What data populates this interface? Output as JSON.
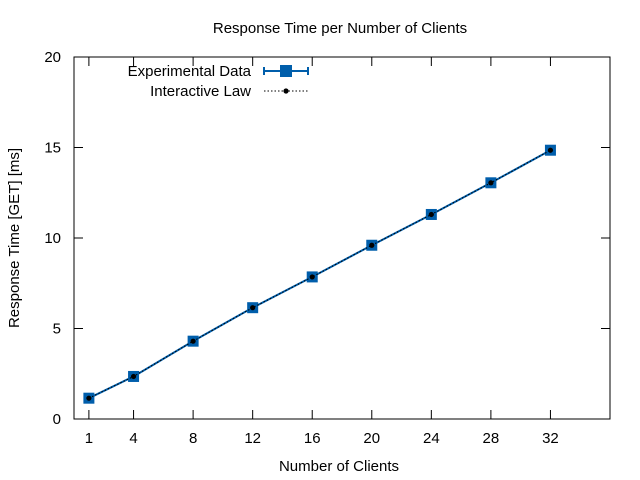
{
  "chart_data": {
    "type": "line",
    "title": "Response Time per Number of Clients",
    "xlabel": "Number of Clients",
    "ylabel": "Response Time [GET] [ms]",
    "xlim": [
      0,
      36
    ],
    "ylim": [
      0,
      20
    ],
    "x_ticks": [
      1,
      4,
      8,
      12,
      16,
      20,
      24,
      28,
      32
    ],
    "y_ticks": [
      0,
      5,
      10,
      15,
      20
    ],
    "grid": false,
    "legend_position": "top-left",
    "x": [
      1,
      4,
      8,
      12,
      16,
      20,
      24,
      28,
      32
    ],
    "series": [
      {
        "name": "Experimental Data",
        "style": "line with square markers and error bars",
        "color": "#005eab",
        "values": [
          1.15,
          2.35,
          4.3,
          6.15,
          7.85,
          9.6,
          11.3,
          13.05,
          14.85
        ]
      },
      {
        "name": "Interactive Law",
        "style": "dotted line with point markers",
        "color": "#000000",
        "values": [
          1.15,
          2.35,
          4.3,
          6.15,
          7.85,
          9.6,
          11.3,
          13.05,
          14.85
        ]
      }
    ]
  }
}
